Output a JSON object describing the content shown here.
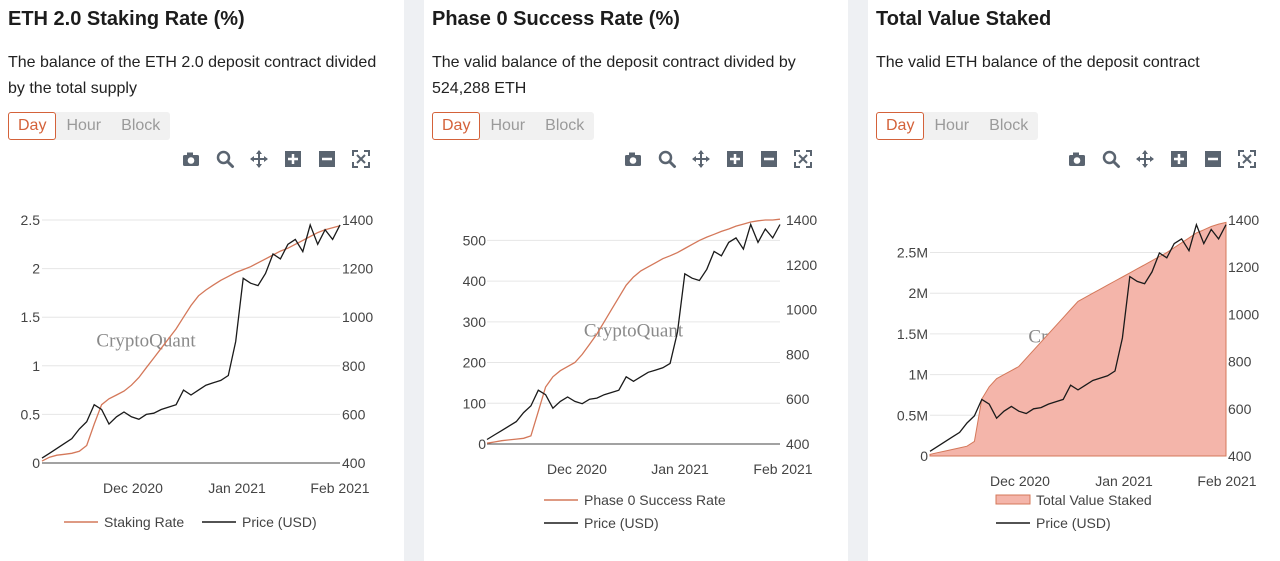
{
  "range_buttons": [
    "Day",
    "Hour",
    "Block"
  ],
  "watermark": "CryptoQuant",
  "colors": {
    "accent": "#d4623a",
    "staking": "#d4785a",
    "price": "#1a1a1a",
    "area_fill": "#f4b5aa"
  },
  "toolbar_icons": [
    "camera-icon",
    "zoom-icon",
    "pan-icon",
    "zoom-in-icon",
    "zoom-out-icon",
    "autoscale-icon"
  ],
  "cards": [
    {
      "title": "ETH 2.0 Staking Rate (%)",
      "description": "The balance of the ETH 2.0 deposit contract divided by the total supply",
      "legend_layout": "row"
    },
    {
      "title": "Phase 0 Success Rate (%)",
      "description": "The valid balance of the deposit contract divided by 524,288 ETH",
      "legend_layout": "column"
    },
    {
      "title": "Total Value Staked",
      "description": "The valid ETH balance of the deposit contract",
      "legend_layout": "column"
    }
  ],
  "chart_data": [
    {
      "type": "line",
      "title": "ETH 2.0 Staking Rate (%)",
      "x_ticks": [
        "Dec 2020",
        "Jan 2021",
        "Feb 2021"
      ],
      "y_left": {
        "ticks": [
          "0",
          "0.5",
          "1",
          "1.5",
          "2",
          "2.5"
        ],
        "range": [
          0,
          2.5
        ]
      },
      "y_right": {
        "ticks": [
          "400",
          "600",
          "800",
          "1000",
          "1200",
          "1400"
        ],
        "range": [
          400,
          1400
        ]
      },
      "series": [
        {
          "name": "Staking Rate",
          "axis": "left",
          "style": "line",
          "values": [
            0.02,
            0.06,
            0.08,
            0.09,
            0.1,
            0.12,
            0.18,
            0.4,
            0.6,
            0.66,
            0.7,
            0.74,
            0.8,
            0.88,
            0.98,
            1.08,
            1.18,
            1.28,
            1.38,
            1.5,
            1.62,
            1.72,
            1.78,
            1.83,
            1.88,
            1.92,
            1.96,
            1.99,
            2.02,
            2.06,
            2.1,
            2.14,
            2.18,
            2.21,
            2.25,
            2.29,
            2.33,
            2.37,
            2.4,
            2.42,
            2.44
          ]
        },
        {
          "name": "Price (USD)",
          "axis": "right",
          "style": "line",
          "values": [
            420,
            440,
            460,
            480,
            500,
            540,
            570,
            640,
            620,
            560,
            590,
            610,
            590,
            580,
            600,
            605,
            620,
            630,
            640,
            700,
            680,
            700,
            720,
            730,
            740,
            760,
            900,
            1160,
            1140,
            1130,
            1180,
            1260,
            1240,
            1300,
            1320,
            1270,
            1380,
            1300,
            1360,
            1320,
            1380
          ]
        }
      ]
    },
    {
      "type": "line",
      "title": "Phase 0 Success Rate (%)",
      "x_ticks": [
        "Dec 2020",
        "Jan 2021",
        "Feb 2021"
      ],
      "y_left": {
        "ticks": [
          "0",
          "100",
          "200",
          "300",
          "400",
          "500"
        ],
        "range": [
          0,
          550
        ]
      },
      "y_right": {
        "ticks": [
          "400",
          "600",
          "800",
          "1000",
          "1200",
          "1400"
        ],
        "range": [
          400,
          1400
        ]
      },
      "series": [
        {
          "name": "Phase 0 Success Rate",
          "axis": "left",
          "style": "line",
          "values": [
            2,
            5,
            8,
            10,
            12,
            14,
            20,
            80,
            140,
            165,
            180,
            190,
            200,
            220,
            245,
            270,
            300,
            330,
            360,
            390,
            410,
            425,
            435,
            445,
            455,
            462,
            470,
            480,
            490,
            500,
            508,
            515,
            522,
            528,
            535,
            540,
            545,
            548,
            550,
            550,
            552
          ]
        },
        {
          "name": "Price (USD)",
          "axis": "right",
          "style": "line",
          "values": [
            420,
            440,
            460,
            480,
            500,
            540,
            570,
            640,
            620,
            560,
            590,
            610,
            590,
            580,
            600,
            605,
            620,
            630,
            640,
            700,
            680,
            700,
            720,
            730,
            740,
            760,
            900,
            1160,
            1140,
            1130,
            1180,
            1260,
            1240,
            1300,
            1320,
            1270,
            1380,
            1300,
            1360,
            1320,
            1380
          ]
        }
      ]
    },
    {
      "type": "area",
      "title": "Total Value Staked",
      "x_ticks": [
        "Dec 2020",
        "Jan 2021",
        "Feb 2021"
      ],
      "y_left": {
        "ticks": [
          "0",
          "0.5M",
          "1M",
          "1.5M",
          "2M",
          "2.5M"
        ],
        "range": [
          0,
          2900000
        ]
      },
      "y_right": {
        "ticks": [
          "400",
          "600",
          "800",
          "1000",
          "1200",
          "1400"
        ],
        "range": [
          400,
          1400
        ]
      },
      "series": [
        {
          "name": "Total Value Staked",
          "axis": "left",
          "style": "area",
          "values": [
            20000,
            40000,
            60000,
            80000,
            100000,
            120000,
            180000,
            700000,
            850000,
            950000,
            1000000,
            1050000,
            1100000,
            1200000,
            1300000,
            1400000,
            1500000,
            1600000,
            1700000,
            1800000,
            1900000,
            1950000,
            2000000,
            2050000,
            2100000,
            2150000,
            2200000,
            2250000,
            2300000,
            2350000,
            2400000,
            2450000,
            2500000,
            2560000,
            2620000,
            2680000,
            2740000,
            2780000,
            2820000,
            2850000,
            2870000
          ]
        },
        {
          "name": "Price (USD)",
          "axis": "right",
          "style": "line",
          "values": [
            420,
            440,
            460,
            480,
            500,
            540,
            570,
            640,
            620,
            560,
            590,
            610,
            590,
            580,
            600,
            605,
            620,
            630,
            640,
            700,
            680,
            700,
            720,
            730,
            740,
            760,
            900,
            1160,
            1140,
            1130,
            1180,
            1260,
            1240,
            1300,
            1320,
            1270,
            1380,
            1300,
            1360,
            1320,
            1380
          ]
        }
      ]
    }
  ]
}
